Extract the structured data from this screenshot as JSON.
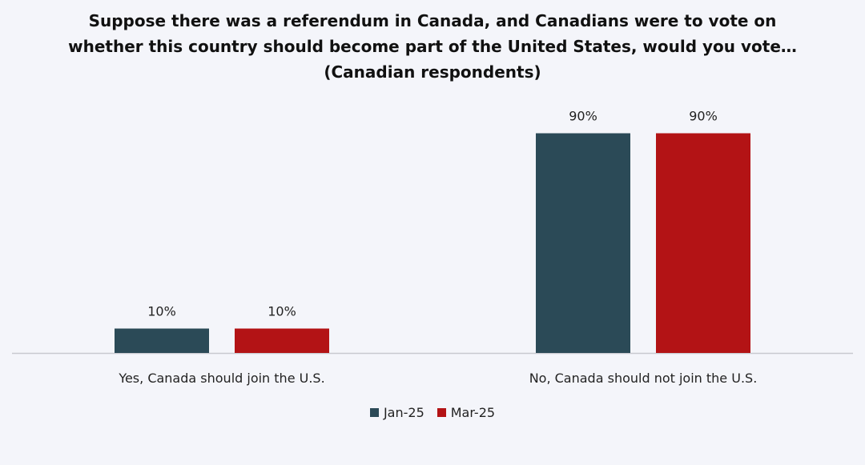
{
  "chart_data": {
    "type": "bar",
    "title": "Suppose there was a referendum in Canada, and Canadians were to vote on\nwhether this country should become part of the United States, would you vote…\n(Canadian respondents)",
    "categories": [
      "Yes, Canada should join the U.S.",
      "No, Canada should not join the U.S."
    ],
    "series": [
      {
        "name": "Jan-25",
        "values": [
          10,
          90
        ],
        "labels": [
          "10%",
          "90%"
        ],
        "color": "#2b4a57"
      },
      {
        "name": "Mar-25",
        "values": [
          10,
          90
        ],
        "labels": [
          "10%",
          "90%"
        ],
        "color": "#b31315"
      }
    ],
    "ylim": [
      0,
      100
    ],
    "xlabel": "",
    "ylabel": "",
    "grid": false,
    "legend_position": "bottom",
    "axis_color": "#c8c9cf"
  }
}
